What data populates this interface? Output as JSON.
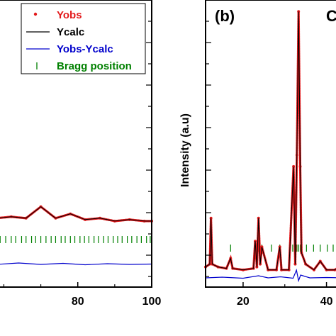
{
  "chart_data": [
    {
      "type": "line",
      "xlabel": "",
      "ylabel": "",
      "xlim": [
        58,
        100
      ],
      "ylim": [
        0,
        100
      ],
      "x_ticks": [
        80,
        100
      ],
      "x_tick_labels": [
        "80",
        "100"
      ],
      "legend": {
        "placement": "top-right",
        "entries": [
          {
            "label": "Yobs",
            "marker": "dot",
            "color": "#e31a1c"
          },
          {
            "label": "Ycalc",
            "marker": "line",
            "color": "#000000"
          },
          {
            "label": "Yobs-Ycalc",
            "marker": "line",
            "color": "#0000cc"
          },
          {
            "label": "Bragg position",
            "marker": "tick",
            "color": "#008000"
          }
        ]
      },
      "series": [
        {
          "name": "Yobs",
          "color": "#e31a1c",
          "x": [
            58,
            62,
            66,
            70,
            74,
            78,
            82,
            86,
            90,
            94,
            98,
            100
          ],
          "y": [
            24,
            24.5,
            24,
            28,
            24,
            25.5,
            23.5,
            24,
            23,
            23.5,
            23,
            23
          ]
        },
        {
          "name": "Ycalc",
          "color": "#000000",
          "x": [
            58,
            62,
            66,
            70,
            74,
            78,
            82,
            86,
            90,
            94,
            98,
            100
          ],
          "y": [
            24,
            24.5,
            24,
            28,
            24,
            25.5,
            23.5,
            24,
            23,
            23.5,
            23,
            23
          ]
        },
        {
          "name": "Yobs-Ycalc",
          "color": "#0000cc",
          "x": [
            58,
            64,
            70,
            76,
            82,
            88,
            94,
            100
          ],
          "y": [
            1,
            1.4,
            1,
            1.3,
            0.9,
            1.2,
            1,
            1.1
          ]
        }
      ],
      "bragg_positions": [
        59,
        60.5,
        62,
        63.2,
        64.8,
        66,
        67.5,
        68.6,
        70,
        71.4,
        72.8,
        74,
        75.5,
        76.6,
        78,
        79.2,
        80.6,
        81.8,
        83,
        84.4,
        85.6,
        87,
        88.2,
        89.6,
        90.8,
        92,
        93.4,
        94.6,
        96,
        97.2,
        98.6,
        99.6
      ]
    },
    {
      "type": "line",
      "panel_label": "(b)",
      "corner_text": "C",
      "xlabel": "",
      "ylabel": "Intensity (a.u)",
      "xlim": [
        11,
        45
      ],
      "ylim": [
        0,
        100
      ],
      "x_ticks": [
        20,
        40
      ],
      "x_tick_labels": [
        "20",
        "40"
      ],
      "series": [
        {
          "name": "Yobs",
          "color": "#e31a1c",
          "x": [
            11,
            12,
            12.3,
            12.6,
            14,
            16,
            17,
            17.5,
            20,
            22.5,
            22.9,
            23.3,
            23.7,
            24.1,
            24.5,
            26,
            28,
            28.8,
            29.2,
            31,
            32.1,
            32.5,
            32.9,
            33.3,
            33.7,
            34,
            35,
            37,
            38.5,
            40,
            42,
            43,
            45
          ],
          "y": [
            7,
            8,
            24,
            8,
            7,
            6.5,
            10,
            6.5,
            6,
            6.5,
            16,
            7,
            24,
            8,
            14,
            6,
            6,
            14,
            6,
            6,
            42,
            8,
            46,
            96,
            42,
            12,
            8,
            6,
            9,
            6,
            6,
            7,
            6
          ]
        },
        {
          "name": "Ycalc",
          "color": "#000000",
          "x": [
            11,
            12,
            12.3,
            12.6,
            14,
            16,
            17,
            17.5,
            20,
            22.5,
            22.9,
            23.3,
            23.7,
            24.1,
            24.5,
            26,
            28,
            28.8,
            29.2,
            31,
            32.1,
            32.5,
            32.9,
            33.3,
            33.7,
            34,
            35,
            37,
            38.5,
            40,
            42,
            43,
            45
          ],
          "y": [
            7,
            8,
            24,
            8,
            7,
            6.5,
            10,
            6.5,
            6,
            6.5,
            16,
            7,
            24,
            8,
            14,
            6,
            6,
            14,
            6,
            6,
            42,
            8,
            46,
            96,
            42,
            12,
            8,
            6,
            9,
            6,
            6,
            7,
            6
          ]
        },
        {
          "name": "Yobs-Ycalc",
          "color": "#0000cc",
          "x": [
            11,
            15,
            20,
            23.7,
            26,
            29,
            32,
            32.8,
            33.3,
            33.8,
            36,
            40,
            45
          ],
          "y": [
            1,
            1.2,
            0.9,
            1.6,
            1,
            1.3,
            0.9,
            3.2,
            0.2,
            1.8,
            1,
            1.1,
            1
          ]
        }
      ],
      "bragg_positions": [
        12.3,
        17,
        22.9,
        23.7,
        24.5,
        26.8,
        28.8,
        31.9,
        32.5,
        32.9,
        33.3,
        33.7,
        35.2,
        36.9,
        38.5,
        40.2,
        41.6,
        42.8,
        44
      ]
    }
  ]
}
